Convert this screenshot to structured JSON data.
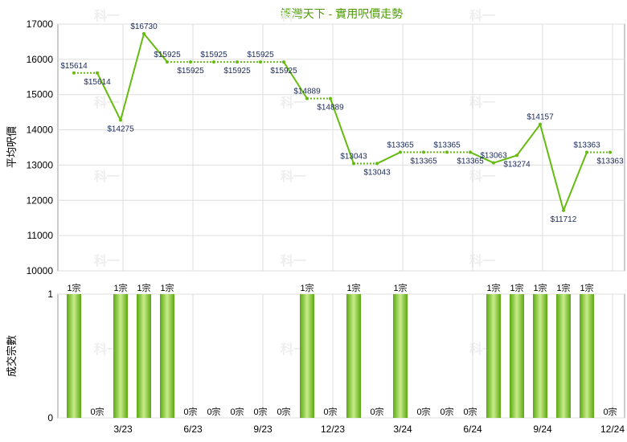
{
  "chart_data": [
    {
      "type": "line",
      "title": "鯉灣天下 - 實用呎價走勢",
      "ylabel": "平均呎價",
      "ylim": [
        10000,
        17000
      ],
      "yticks": [
        10000,
        11000,
        12000,
        13000,
        14000,
        15000,
        16000,
        17000
      ],
      "grid": true,
      "color": "#66bb11",
      "points": [
        {
          "x": 0,
          "y": 15614,
          "label": "$15614"
        },
        {
          "x": 1,
          "y": 15614,
          "label": "$15614"
        },
        {
          "x": 2,
          "y": 14275,
          "label": "$14275"
        },
        {
          "x": 3,
          "y": 16730,
          "label": "$16730"
        },
        {
          "x": 4,
          "y": 15925,
          "label": "$15925"
        },
        {
          "x": 5,
          "y": 15925,
          "label": "$15925"
        },
        {
          "x": 6,
          "y": 15925,
          "label": "$15925"
        },
        {
          "x": 7,
          "y": 15925,
          "label": "$15925"
        },
        {
          "x": 8,
          "y": 15925,
          "label": "$15925"
        },
        {
          "x": 9,
          "y": 15925,
          "label": "$15925"
        },
        {
          "x": 10,
          "y": 14889,
          "label": "$14889"
        },
        {
          "x": 11,
          "y": 14889,
          "label": "$14889"
        },
        {
          "x": 12,
          "y": 13043,
          "label": "$13043"
        },
        {
          "x": 13,
          "y": 13043,
          "label": "$13043"
        },
        {
          "x": 14,
          "y": 13365,
          "label": "$13365"
        },
        {
          "x": 15,
          "y": 13365,
          "label": "$13365"
        },
        {
          "x": 16,
          "y": 13365,
          "label": "$13365"
        },
        {
          "x": 17,
          "y": 13365,
          "label": "$13365"
        },
        {
          "x": 18,
          "y": 13063,
          "label": "$13063"
        },
        {
          "x": 19,
          "y": 13274,
          "label": "$13274"
        },
        {
          "x": 20,
          "y": 14157,
          "label": "$14157"
        },
        {
          "x": 21,
          "y": 11712,
          "label": "$11712"
        },
        {
          "x": 22,
          "y": 13363,
          "label": "$13363"
        },
        {
          "x": 23,
          "y": 13363,
          "label": "$13363"
        }
      ]
    },
    {
      "type": "bar",
      "ylabel": "成交宗數",
      "ylim": [
        0,
        1
      ],
      "yticks": [
        0,
        1
      ],
      "grid": true,
      "color": "#66bb11",
      "values": [
        1,
        0,
        1,
        1,
        1,
        0,
        0,
        0,
        0,
        0,
        1,
        0,
        1,
        0,
        1,
        0,
        0,
        0,
        1,
        1,
        1,
        1,
        1,
        0
      ],
      "value_labels": [
        "1宗",
        "0宗",
        "1宗",
        "1宗",
        "1宗",
        "0宗",
        "0宗",
        "0宗",
        "0宗",
        "0宗",
        "1宗",
        "0宗",
        "1宗",
        "0宗",
        "1宗",
        "0宗",
        "0宗",
        "0宗",
        "1宗",
        "1宗",
        "1宗",
        "1宗",
        "1宗",
        "0宗"
      ]
    }
  ],
  "x_axis": {
    "ticks": [
      {
        "index": 2,
        "label": "3/23"
      },
      {
        "index": 5,
        "label": "6/23"
      },
      {
        "index": 8,
        "label": "9/23"
      },
      {
        "index": 11,
        "label": "12/23"
      },
      {
        "index": 14,
        "label": "3/24"
      },
      {
        "index": 17,
        "label": "6/24"
      },
      {
        "index": 20,
        "label": "9/24"
      },
      {
        "index": 23,
        "label": "12/24"
      }
    ]
  },
  "watermark": "科一"
}
